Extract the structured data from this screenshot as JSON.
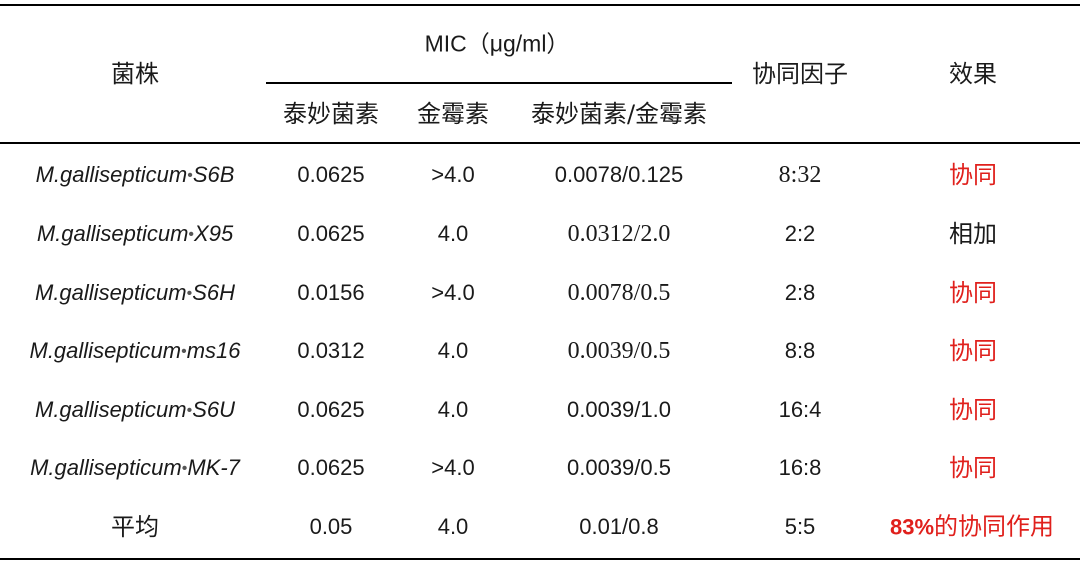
{
  "header": {
    "strain": "菌株",
    "mic_group": "MIC（μg/ml）",
    "sub": [
      "泰妙菌素",
      "金霉素",
      "泰妙菌素/金霉素"
    ],
    "synergy_factor": "协同因子",
    "effect": "效果"
  },
  "rows": [
    {
      "strain_name": "M.gallisepticum",
      "strain_code": "S6B",
      "tiamulin": "0.0625",
      "chlortetracycline": ">4.0",
      "combo": "0.0078/0.125",
      "factor": "8:32",
      "effect": "协同"
    },
    {
      "strain_name": "M.gallisepticum",
      "strain_code": "X95",
      "tiamulin": "0.0625",
      "chlortetracycline": "4.0",
      "combo": "0.0312/2.0",
      "factor": "2:2",
      "effect": "相加"
    },
    {
      "strain_name": "M.gallisepticum",
      "strain_code": "S6H",
      "tiamulin": "0.0156",
      "chlortetracycline": ">4.0",
      "combo": "0.0078/0.5",
      "factor": "2:8",
      "effect": "协同"
    },
    {
      "strain_name": "M.gallisepticum",
      "strain_code": "ms16",
      "tiamulin": "0.0312",
      "chlortetracycline": "4.0",
      "combo": "0.0039/0.5",
      "factor": "8:8",
      "effect": "协同"
    },
    {
      "strain_name": "M.gallisepticum",
      "strain_code": "S6U",
      "tiamulin": "0.0625",
      "chlortetracycline": "4.0",
      "combo": "0.0039/1.0",
      "factor": "16:4",
      "effect": "协同"
    },
    {
      "strain_name": "M.gallisepticum",
      "strain_code": "MK-7",
      "tiamulin": "0.0625",
      "chlortetracycline": ">4.0",
      "combo": "0.0039/0.5",
      "factor": "16:8",
      "effect": "协同"
    }
  ],
  "average": {
    "label": "平均",
    "tiamulin": "0.05",
    "chlortetracycline": "4.0",
    "combo": "0.01/0.8",
    "factor": "5:5",
    "effect_pct": "83%",
    "effect_text": "的协同作用"
  },
  "colors": {
    "synergy": "#e0201c",
    "text": "#1a1a1a"
  }
}
